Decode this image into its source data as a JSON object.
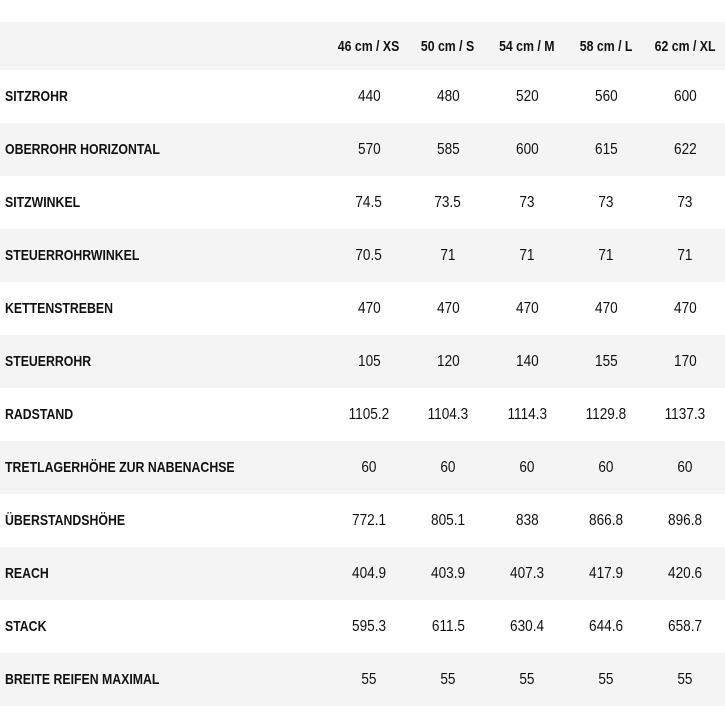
{
  "table": {
    "header": [
      "46 cm / XS",
      "50 cm / S",
      "54 cm / M",
      "58 cm / L",
      "62 cm / XL"
    ],
    "rows": [
      [
        "SITZROHR",
        "440",
        "480",
        "520",
        "560",
        "600"
      ],
      [
        "OBERROHR HORIZONTAL",
        "570",
        "585",
        "600",
        "615",
        "622"
      ],
      [
        "SITZWINKEL",
        "74.5",
        "73.5",
        "73",
        "73",
        "73"
      ],
      [
        "STEUERROHRWINKEL",
        "70.5",
        "71",
        "71",
        "71",
        "71"
      ],
      [
        "KETTENSTREBEN",
        "470",
        "470",
        "470",
        "470",
        "470"
      ],
      [
        "STEUERROHR",
        "105",
        "120",
        "140",
        "155",
        "170"
      ],
      [
        "RADSTAND",
        "1105.2",
        "1104.3",
        "1114.3",
        "1129.8",
        "1137.3"
      ],
      [
        "TRETLAGERHÖHE ZUR NABENACHSE",
        "60",
        "60",
        "60",
        "60",
        "60"
      ],
      [
        "ÜBERSTANDSHÖHE",
        "772.1",
        "805.1",
        "838",
        "866.8",
        "896.8"
      ],
      [
        "REACH",
        "404.9",
        "403.9",
        "407.3",
        "417.9",
        "420.6"
      ],
      [
        "STACK",
        "595.3",
        "611.5",
        "630.4",
        "644.6",
        "658.7"
      ],
      [
        "BREITE REIFEN MAXIMAL",
        "55",
        "55",
        "55",
        "55",
        "55"
      ]
    ]
  }
}
